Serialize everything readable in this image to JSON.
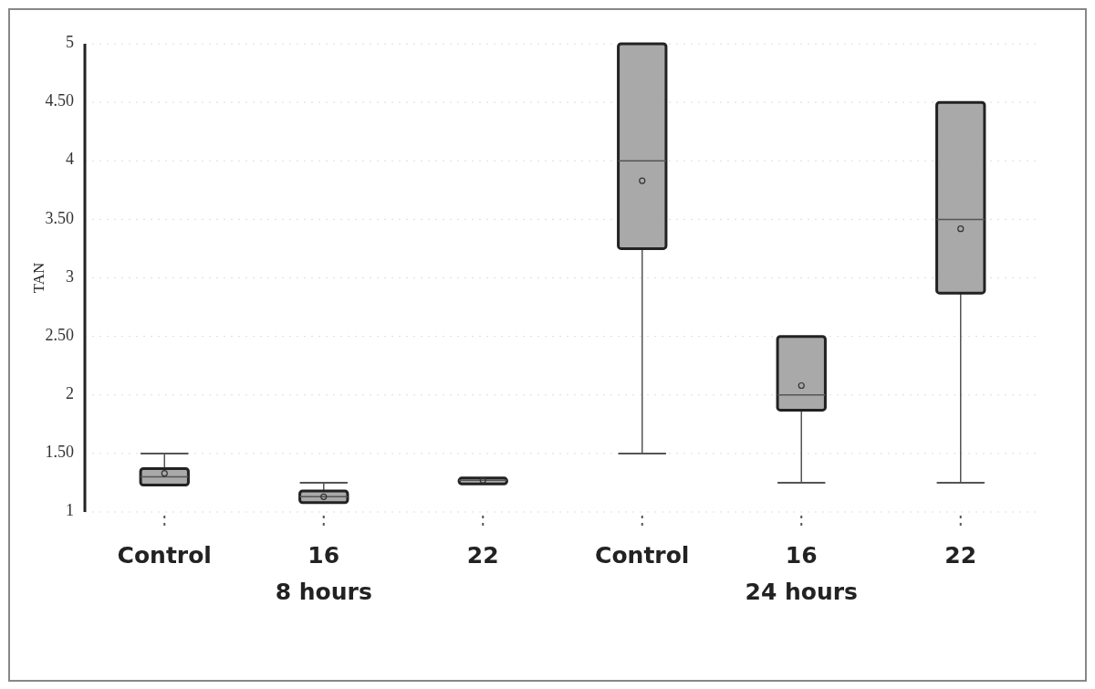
{
  "chart_data": {
    "type": "box",
    "ylabel": "TAN",
    "categories": [
      "Control",
      "16",
      "22",
      "Control",
      "16",
      "22"
    ],
    "annotations": [
      "8 hours",
      "24 hours"
    ],
    "ylim": [
      1,
      5
    ],
    "yticks": [
      1,
      {
        "value": 1.5,
        "label": "1.50"
      },
      2,
      {
        "value": 2.5,
        "label": "2.50"
      },
      3,
      {
        "value": 3.5,
        "label": "3.50"
      },
      4,
      {
        "value": 4.5,
        "label": "4.50"
      },
      5
    ],
    "grid": "y",
    "color": "#a0a0a0",
    "boxes": [
      {
        "low": 1.23,
        "q1": 1.23,
        "median": 1.3,
        "q3": 1.37,
        "high": 1.5,
        "mean": 1.33
      },
      {
        "low": 1.08,
        "q1": 1.08,
        "median": 1.13,
        "q3": 1.18,
        "high": 1.25,
        "mean": 1.13
      },
      {
        "low": 1.24,
        "q1": 1.24,
        "median": 1.27,
        "q3": 1.29,
        "high": 1.29,
        "mean": 1.27
      },
      {
        "low": 1.5,
        "q1": 3.25,
        "median": 4,
        "q3": 5,
        "high": 5,
        "mean": 3.83
      },
      {
        "low": 1.25,
        "q1": 1.87,
        "median": 2,
        "q3": 2.5,
        "high": 2.5,
        "mean": 2.08
      },
      {
        "low": 1.25,
        "q1": 2.87,
        "median": 3.5,
        "q3": 4.5,
        "high": 4.5,
        "mean": 3.42
      }
    ]
  }
}
